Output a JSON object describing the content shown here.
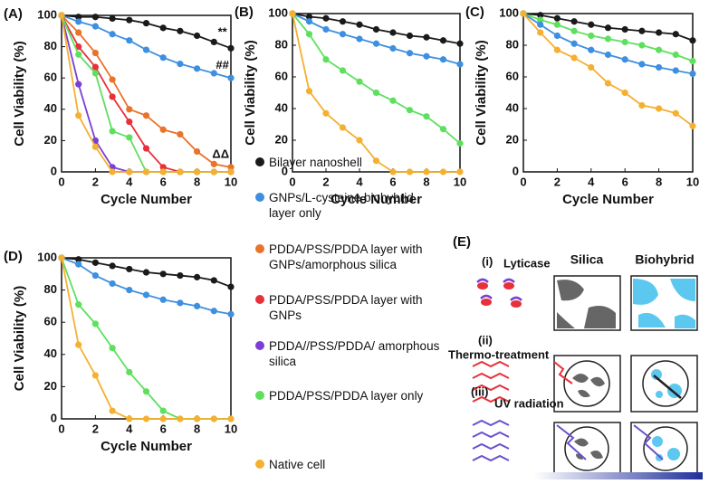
{
  "chart_data": [
    {
      "type": "line",
      "panel_label": "(A)",
      "x_label": "Cycle Number",
      "y_label": "Cell Viability (%)",
      "x": [
        0,
        1,
        2,
        3,
        4,
        5,
        6,
        7,
        8,
        9,
        10
      ],
      "xlim": [
        0,
        10
      ],
      "xticks": [
        0,
        2,
        4,
        6,
        8,
        10
      ],
      "ylim": [
        0,
        100
      ],
      "yticks": [
        0,
        20,
        40,
        60,
        80,
        100
      ],
      "series": [
        {
          "name": "Bilayer nanoshell",
          "color": "#1a1a1a",
          "values": [
            100,
            99,
            99,
            98,
            97,
            95,
            92,
            90,
            87,
            83,
            79
          ]
        },
        {
          "name": "GNPs/L-cysteine biohybrid layer only",
          "color": "#3d8fe0",
          "values": [
            100,
            96,
            93,
            88,
            84,
            78,
            73,
            69,
            66,
            63,
            60
          ]
        },
        {
          "name": "PDDA/PSS/PDDA layer with GNPs/amorphous silica",
          "color": "#e8732a",
          "values": [
            100,
            89,
            76,
            59,
            40,
            36,
            27,
            24,
            13,
            5,
            3
          ]
        },
        {
          "name": "PDDA/PSS/PDDA layer with GNPs",
          "color": "#e8303a",
          "values": [
            100,
            80,
            67,
            48,
            32,
            15,
            3,
            0,
            0,
            0,
            0
          ]
        },
        {
          "name": "PDDA//PSS/PDDA/ amorphous silica",
          "color": "#7a3fd6",
          "values": [
            100,
            56,
            20,
            3,
            0,
            0,
            0,
            0,
            0,
            0,
            0
          ]
        },
        {
          "name": "PDDA/PSS/PDDA layer only",
          "color": "#5ee05e",
          "values": [
            100,
            75,
            63,
            26,
            22,
            0,
            0,
            0,
            0,
            0,
            0
          ]
        },
        {
          "name": "Native cell",
          "color": "#f5b030",
          "values": [
            100,
            36,
            16,
            0,
            0,
            0,
            0,
            0,
            0,
            0,
            0
          ]
        }
      ],
      "annotations": [
        {
          "text": "**",
          "x": 9.5,
          "y": 89
        },
        {
          "text": "##",
          "x": 9.5,
          "y": 68
        },
        {
          "text": "ΔΔ",
          "x": 9.4,
          "y": 11
        }
      ]
    },
    {
      "type": "line",
      "panel_label": "(B)",
      "x_label": "Cycle Number",
      "y_label": "Cell Viability (%)",
      "x": [
        0,
        1,
        2,
        3,
        4,
        5,
        6,
        7,
        8,
        9,
        10
      ],
      "xlim": [
        0,
        10
      ],
      "xticks": [
        0,
        2,
        4,
        6,
        8,
        10
      ],
      "ylim": [
        0,
        100
      ],
      "yticks": [
        0,
        20,
        40,
        60,
        80,
        100
      ],
      "series": [
        {
          "color": "#1a1a1a",
          "values": [
            100,
            98,
            97,
            95,
            93,
            90,
            88,
            86,
            85,
            83,
            81
          ]
        },
        {
          "color": "#3d8fe0",
          "values": [
            100,
            95,
            90,
            87,
            84,
            81,
            78,
            75,
            73,
            71,
            68
          ]
        },
        {
          "color": "#5ee05e",
          "values": [
            100,
            87,
            71,
            64,
            57,
            50,
            45,
            39,
            35,
            27,
            18
          ]
        },
        {
          "color": "#f5b030",
          "values": [
            100,
            51,
            37,
            28,
            20,
            7,
            0,
            0,
            0,
            0,
            0
          ]
        }
      ]
    },
    {
      "type": "line",
      "panel_label": "(C)",
      "x_label": "Cycle Number",
      "y_label": "Cell Viability (%)",
      "x": [
        0,
        1,
        2,
        3,
        4,
        5,
        6,
        7,
        8,
        9,
        10
      ],
      "xlim": [
        0,
        10
      ],
      "xticks": [
        0,
        2,
        4,
        6,
        8,
        10
      ],
      "ylim": [
        0,
        100
      ],
      "yticks": [
        0,
        20,
        40,
        60,
        80,
        100
      ],
      "series": [
        {
          "color": "#1a1a1a",
          "values": [
            100,
            99,
            97,
            95,
            93,
            91,
            90,
            89,
            88,
            87,
            83
          ]
        },
        {
          "color": "#5ee05e",
          "values": [
            100,
            96,
            93,
            89,
            86,
            84,
            82,
            80,
            77,
            74,
            70
          ]
        },
        {
          "color": "#3d8fe0",
          "values": [
            100,
            93,
            86,
            81,
            77,
            74,
            71,
            68,
            66,
            64,
            62
          ]
        },
        {
          "color": "#f5b030",
          "values": [
            100,
            88,
            77,
            72,
            66,
            56,
            50,
            42,
            40,
            37,
            29
          ]
        }
      ]
    },
    {
      "type": "line",
      "panel_label": "(D)",
      "x_label": "Cycle Number",
      "y_label": "Cell Viability (%)",
      "x": [
        0,
        1,
        2,
        3,
        4,
        5,
        6,
        7,
        8,
        9,
        10
      ],
      "xlim": [
        0,
        10
      ],
      "xticks": [
        0,
        2,
        4,
        6,
        8,
        10
      ],
      "ylim": [
        0,
        100
      ],
      "yticks": [
        0,
        20,
        40,
        60,
        80,
        100
      ],
      "series": [
        {
          "color": "#1a1a1a",
          "values": [
            100,
            99,
            97,
            95,
            93,
            91,
            90,
            89,
            88,
            86,
            82
          ]
        },
        {
          "color": "#3d8fe0",
          "values": [
            100,
            96,
            89,
            84,
            80,
            77,
            74,
            72,
            70,
            67,
            65
          ]
        },
        {
          "color": "#5ee05e",
          "values": [
            100,
            71,
            59,
            44,
            29,
            17,
            5,
            0,
            0,
            0,
            0
          ]
        },
        {
          "color": "#f5b030",
          "values": [
            100,
            46,
            27,
            5,
            0,
            0,
            0,
            0,
            0,
            0,
            0
          ]
        }
      ]
    }
  ],
  "diagram": {
    "panel_label": "(E)",
    "col_silica": "Silica",
    "col_biohybrid": "Biohybrid",
    "rows": [
      {
        "index": "(i)",
        "label": "Lyticase"
      },
      {
        "index": "(ii)",
        "label": "Thermo-treatment"
      },
      {
        "index": "(iii)",
        "label": "UV radiation"
      }
    ]
  }
}
